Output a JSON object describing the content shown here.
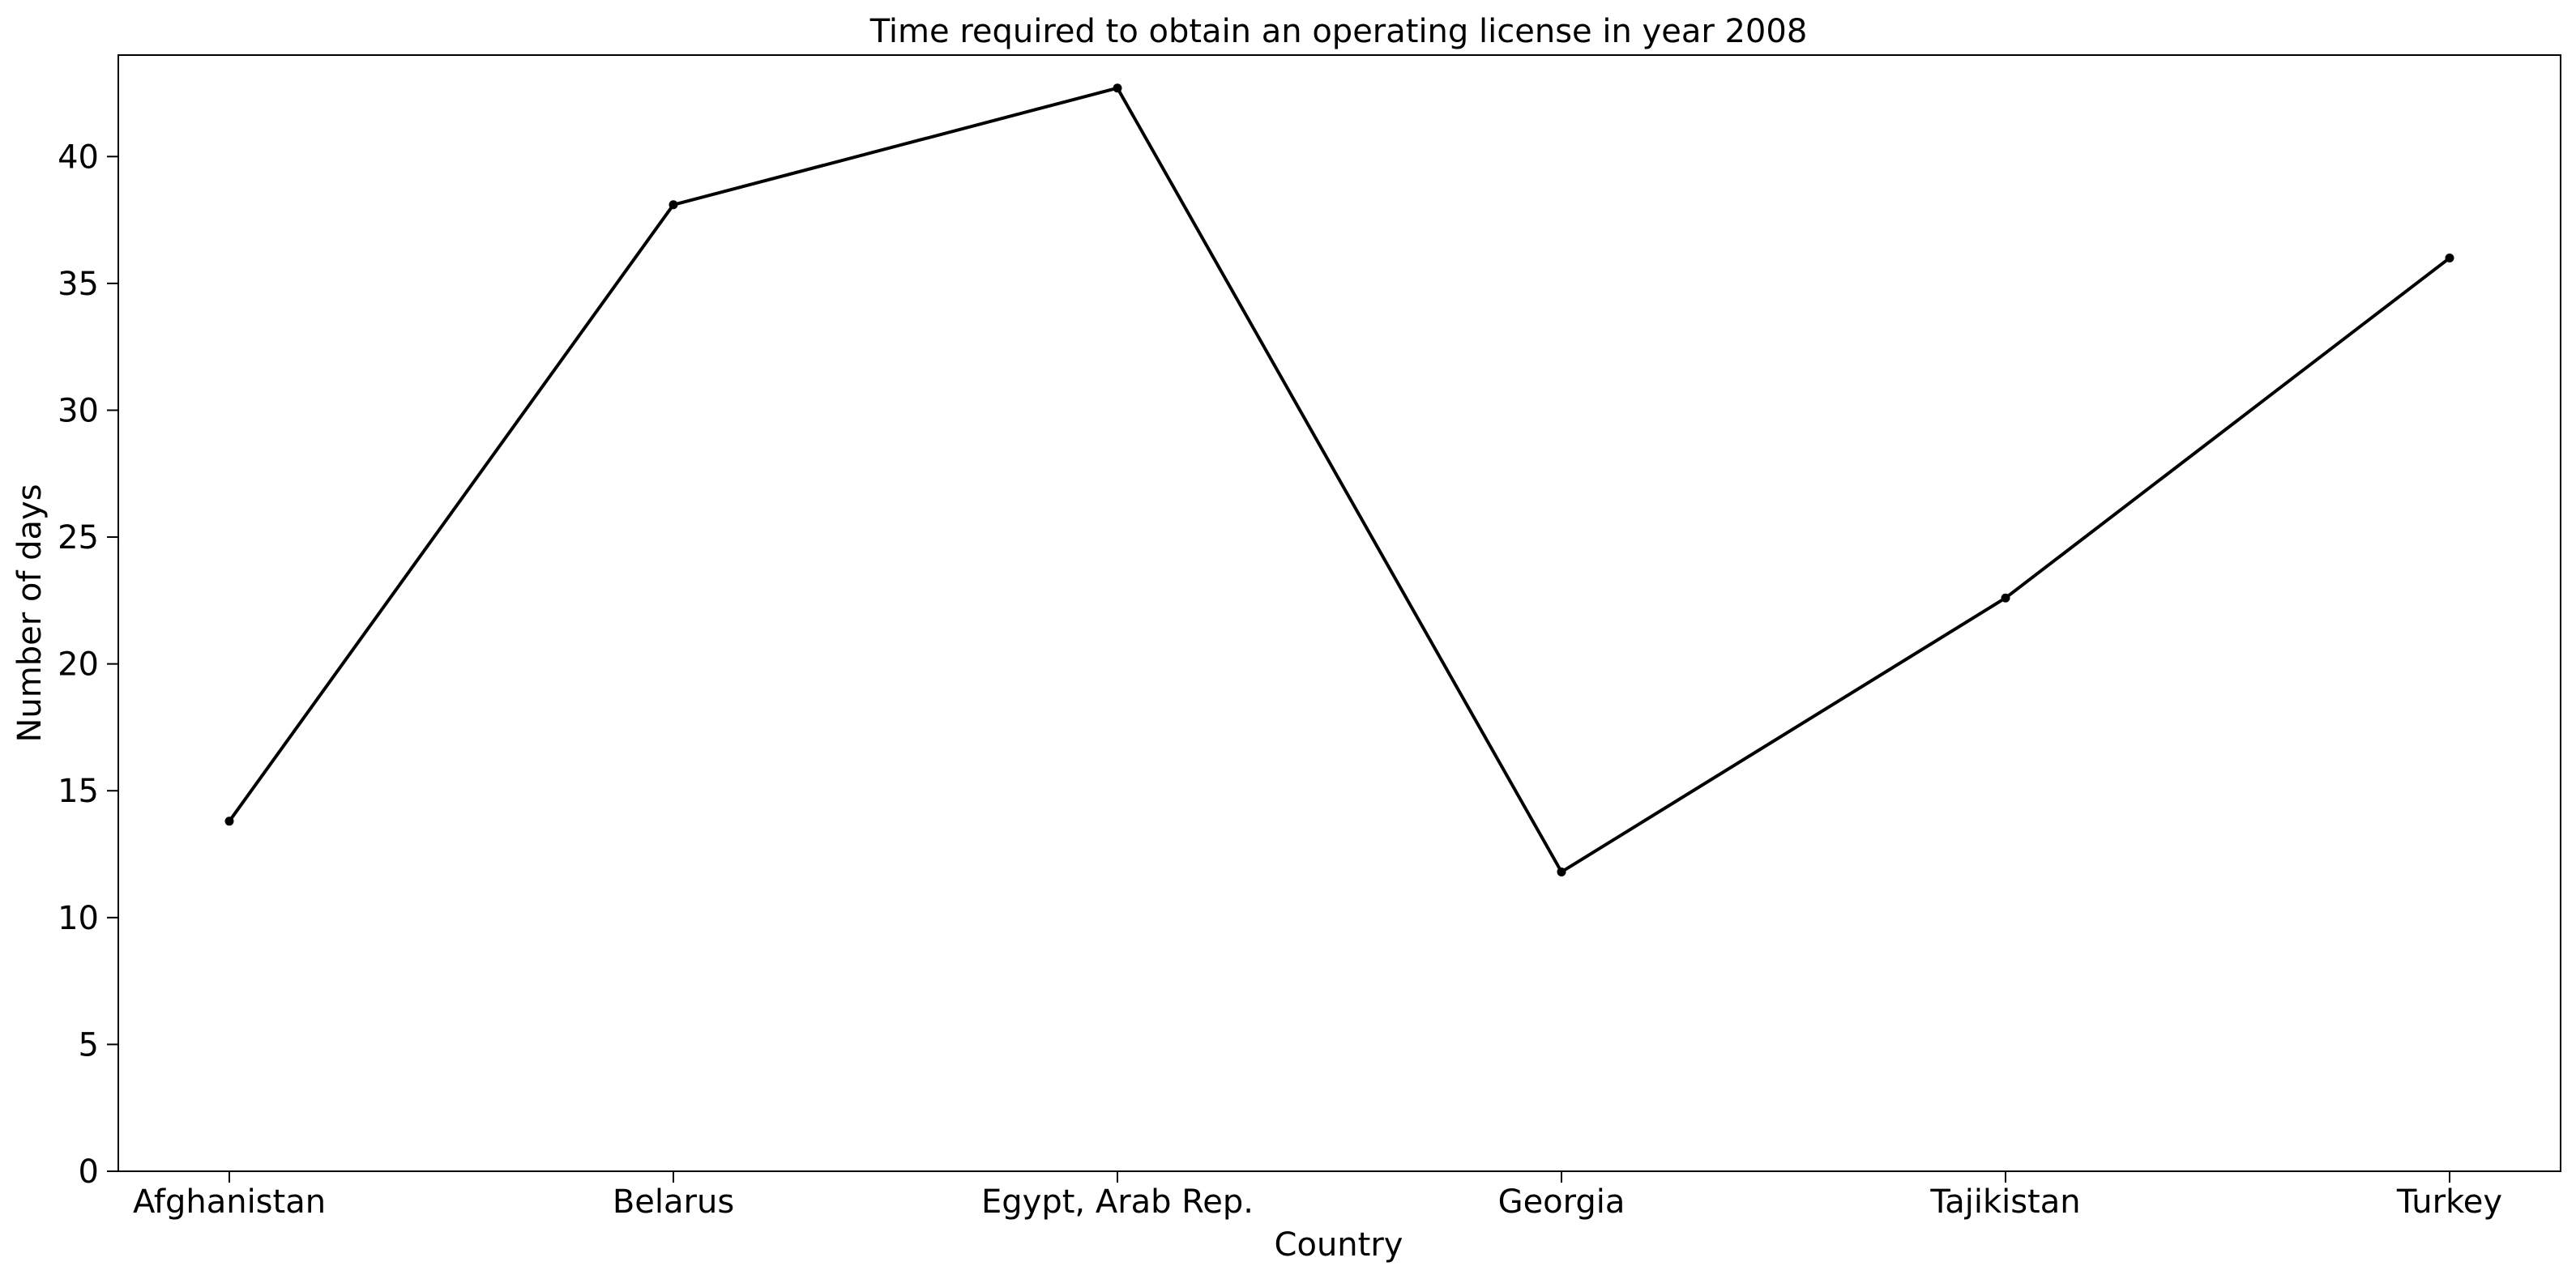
{
  "chart_data": {
    "type": "line",
    "title": "Time required to obtain an operating license in year 2008",
    "xlabel": "Country",
    "ylabel": "Number of days",
    "categories": [
      "Afghanistan",
      "Belarus",
      "Egypt, Arab Rep.",
      "Georgia",
      "Tajikistan",
      "Turkey"
    ],
    "series": [
      {
        "values": [
          13.8,
          38.1,
          42.7,
          11.8,
          22.6,
          36.0
        ]
      }
    ],
    "ylim": [
      0,
      44
    ],
    "yticks": [
      0,
      5,
      10,
      15,
      20,
      25,
      30,
      35,
      40
    ],
    "grid": false,
    "colors": {
      "line": "#000000",
      "axes": "#000000",
      "background": "#ffffff"
    }
  }
}
